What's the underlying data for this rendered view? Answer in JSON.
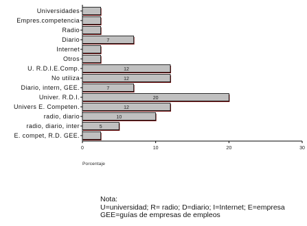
{
  "chart_data": {
    "type": "bar",
    "orientation": "horizontal",
    "categories": [
      "Universidades",
      "Empres.competencia",
      "Radio",
      "Diario",
      "Internet",
      "Otros",
      "U. R.D.I.E.Comp.",
      "No utiliza",
      "Diario, intern, GEE.",
      "Univer. R.D.I.",
      "Univers E. Competen.",
      "radio, diario",
      "radio, diario, inter",
      "E. compet, R.D. GEE."
    ],
    "values": [
      2.5,
      2.5,
      2.5,
      7,
      2.5,
      2.5,
      12,
      12,
      7,
      20,
      12,
      10,
      5,
      2.5
    ],
    "data_labels": [
      "",
      "",
      "",
      "7",
      "",
      "",
      "12",
      "12",
      "7",
      "20",
      "12",
      "10",
      "5",
      ""
    ],
    "xlim": [
      0,
      30
    ],
    "xticks": [
      "0",
      "10",
      "20",
      "30"
    ],
    "xlabel": "Porcentaje",
    "ylabel": "",
    "grid": false,
    "colors": {
      "bar_fill": "#c0c0c0",
      "bar_stroke": "#000000",
      "bar_shadow": "#7a1a1a"
    }
  },
  "note": {
    "title": "Nota:",
    "line1": "U=universidad; R= radio; D=diario; I=Internet; E=empresa",
    "line2": "GEE=guías de empresas de empleos"
  }
}
